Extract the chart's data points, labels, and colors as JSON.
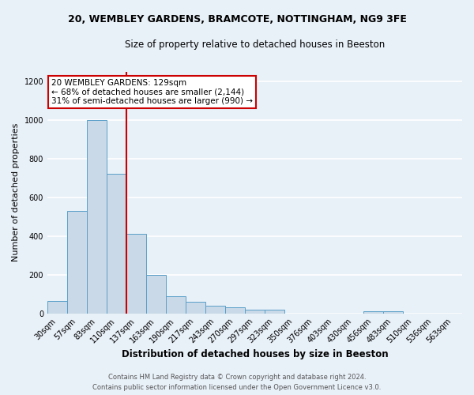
{
  "title_line1": "20, WEMBLEY GARDENS, BRAMCOTE, NOTTINGHAM, NG9 3FE",
  "title_line2": "Size of property relative to detached houses in Beeston",
  "xlabel": "Distribution of detached houses by size in Beeston",
  "ylabel": "Number of detached properties",
  "categories": [
    "30sqm",
    "57sqm",
    "83sqm",
    "110sqm",
    "137sqm",
    "163sqm",
    "190sqm",
    "217sqm",
    "243sqm",
    "270sqm",
    "297sqm",
    "323sqm",
    "350sqm",
    "376sqm",
    "403sqm",
    "430sqm",
    "456sqm",
    "483sqm",
    "510sqm",
    "536sqm",
    "563sqm"
  ],
  "values": [
    65,
    530,
    1000,
    720,
    410,
    198,
    90,
    58,
    40,
    30,
    18,
    20,
    0,
    0,
    0,
    0,
    10,
    12,
    0,
    0,
    0
  ],
  "bar_color": "#c9d9e8",
  "bar_edge_color": "#5a9fc8",
  "red_line_color": "#cc0000",
  "annotation_text": "20 WEMBLEY GARDENS: 129sqm\n← 68% of detached houses are smaller (2,144)\n31% of semi-detached houses are larger (990) →",
  "annotation_box_facecolor": "white",
  "annotation_box_edgecolor": "#cc0000",
  "ylim": [
    0,
    1250
  ],
  "yticks": [
    0,
    200,
    400,
    600,
    800,
    1000,
    1200
  ],
  "footer": "Contains HM Land Registry data © Crown copyright and database right 2024.\nContains public sector information licensed under the Open Government Licence v3.0.",
  "bg_color": "#e8f0f8",
  "grid_color": "white"
}
